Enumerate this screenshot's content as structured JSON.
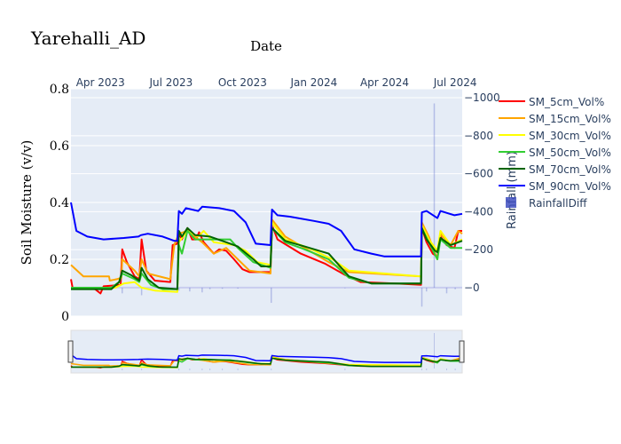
{
  "chart_data": {
    "type": "line",
    "title": "Yarehalli_AD",
    "xlabel": "Date",
    "ylabel": "Soil Moisture (v/v)",
    "y2label": "Rainfall (mm)",
    "xrange": [
      "2023-02-22",
      "2024-07-10"
    ],
    "ylim": [
      0,
      0.8
    ],
    "y2lim": [
      -150,
      1047
    ],
    "x_ticks": [
      {
        "date": "2023-04-01",
        "label": "Apr 2023"
      },
      {
        "date": "2023-07-01",
        "label": "Jul 2023"
      },
      {
        "date": "2023-10-01",
        "label": "Oct 2023"
      },
      {
        "date": "2024-01-01",
        "label": "Jan 2024"
      },
      {
        "date": "2024-04-01",
        "label": "Apr 2024"
      },
      {
        "date": "2024-07-01",
        "label": "Jul 2024"
      }
    ],
    "y_ticks": [
      {
        "v": 0,
        "label": "0"
      },
      {
        "v": 0.2,
        "label": "0.2"
      },
      {
        "v": 0.4,
        "label": "0.4"
      },
      {
        "v": 0.6,
        "label": "0.6"
      },
      {
        "v": 0.8,
        "label": "0.8"
      }
    ],
    "y2_ticks": [
      {
        "v": 0,
        "label": "0"
      },
      {
        "v": 200,
        "label": "200"
      },
      {
        "v": 400,
        "label": "400"
      },
      {
        "v": 600,
        "label": "600"
      },
      {
        "v": 800,
        "label": "800"
      },
      {
        "v": 1000,
        "label": "1000"
      }
    ],
    "grid": true,
    "legend_position": "right",
    "range_slider": true,
    "series": [
      {
        "name": "SM_5cm_Vol%",
        "color": "#ff0000",
        "points": [
          [
            "2023-02-22",
            0.13
          ],
          [
            "2023-02-24",
            0.1
          ],
          [
            "2023-03-25",
            0.095
          ],
          [
            "2023-04-01",
            0.08
          ],
          [
            "2023-04-05",
            0.105
          ],
          [
            "2023-04-27",
            0.11
          ],
          [
            "2023-04-29",
            0.235
          ],
          [
            "2023-05-05",
            0.19
          ],
          [
            "2023-05-15",
            0.14
          ],
          [
            "2023-05-21",
            0.13
          ],
          [
            "2023-05-24",
            0.27
          ],
          [
            "2023-05-30",
            0.16
          ],
          [
            "2023-06-10",
            0.125
          ],
          [
            "2023-06-30",
            0.12
          ],
          [
            "2023-07-03",
            0.25
          ],
          [
            "2023-07-09",
            0.255
          ],
          [
            "2023-07-11",
            0.29
          ],
          [
            "2023-07-15",
            0.27
          ],
          [
            "2023-07-22",
            0.31
          ],
          [
            "2023-07-28",
            0.27
          ],
          [
            "2023-08-02",
            0.27
          ],
          [
            "2023-08-06",
            0.295
          ],
          [
            "2023-08-12",
            0.26
          ],
          [
            "2023-08-25",
            0.22
          ],
          [
            "2023-09-01",
            0.235
          ],
          [
            "2023-09-10",
            0.23
          ],
          [
            "2023-09-20",
            0.2
          ],
          [
            "2023-10-01",
            0.165
          ],
          [
            "2023-10-10",
            0.155
          ],
          [
            "2023-11-06",
            0.155
          ],
          [
            "2023-11-08",
            0.32
          ],
          [
            "2023-11-15",
            0.27
          ],
          [
            "2023-12-15",
            0.22
          ],
          [
            "2024-01-15",
            0.185
          ],
          [
            "2024-02-10",
            0.145
          ],
          [
            "2024-03-01",
            0.12
          ],
          [
            "2024-04-15",
            0.115
          ],
          [
            "2024-05-18",
            0.11
          ],
          [
            "2024-05-19",
            0.31
          ],
          [
            "2024-05-25",
            0.26
          ],
          [
            "2024-06-02",
            0.22
          ],
          [
            "2024-06-08",
            0.21
          ],
          [
            "2024-06-12",
            0.28
          ],
          [
            "2024-06-20",
            0.25
          ],
          [
            "2024-06-30",
            0.24
          ],
          [
            "2024-07-05",
            0.3
          ],
          [
            "2024-07-10",
            0.3
          ]
        ]
      },
      {
        "name": "SM_15cm_Vol%",
        "color": "#ffa500",
        "points": [
          [
            "2023-02-22",
            0.18
          ],
          [
            "2023-03-10",
            0.14
          ],
          [
            "2023-04-12",
            0.14
          ],
          [
            "2023-04-13",
            0.125
          ],
          [
            "2023-04-22",
            0.13
          ],
          [
            "2023-04-28",
            0.135
          ],
          [
            "2023-04-29",
            0.2
          ],
          [
            "2023-05-15",
            0.16
          ],
          [
            "2023-05-21",
            0.14
          ],
          [
            "2023-05-24",
            0.2
          ],
          [
            "2023-06-01",
            0.15
          ],
          [
            "2023-06-30",
            0.13
          ],
          [
            "2023-07-05",
            0.25
          ],
          [
            "2023-07-11",
            0.29
          ],
          [
            "2023-07-22",
            0.3
          ],
          [
            "2023-08-10",
            0.26
          ],
          [
            "2023-08-25",
            0.22
          ],
          [
            "2023-09-10",
            0.24
          ],
          [
            "2023-09-25",
            0.2
          ],
          [
            "2023-10-10",
            0.16
          ],
          [
            "2023-11-06",
            0.15
          ],
          [
            "2023-11-08",
            0.34
          ],
          [
            "2023-11-25",
            0.28
          ],
          [
            "2023-12-20",
            0.24
          ],
          [
            "2024-01-20",
            0.19
          ],
          [
            "2024-02-15",
            0.155
          ],
          [
            "2024-05-18",
            0.14
          ],
          [
            "2024-05-19",
            0.33
          ],
          [
            "2024-05-28",
            0.28
          ],
          [
            "2024-06-05",
            0.22
          ],
          [
            "2024-06-08",
            0.2
          ],
          [
            "2024-06-12",
            0.29
          ],
          [
            "2024-06-25",
            0.25
          ],
          [
            "2024-07-05",
            0.3
          ],
          [
            "2024-07-10",
            0.29
          ]
        ]
      },
      {
        "name": "SM_30cm_Vol%",
        "color": "#ffff00",
        "points": [
          [
            "2023-02-22",
            0.1
          ],
          [
            "2023-03-20",
            0.095
          ],
          [
            "2023-04-20",
            0.1
          ],
          [
            "2023-05-01",
            0.115
          ],
          [
            "2023-05-15",
            0.12
          ],
          [
            "2023-05-24",
            0.1
          ],
          [
            "2023-06-10",
            0.09
          ],
          [
            "2023-07-09",
            0.085
          ],
          [
            "2023-07-11",
            0.26
          ],
          [
            "2023-07-22",
            0.3
          ],
          [
            "2023-08-05",
            0.28
          ],
          [
            "2023-08-12",
            0.3
          ],
          [
            "2023-08-25",
            0.26
          ],
          [
            "2023-09-20",
            0.25
          ],
          [
            "2023-10-05",
            0.23
          ],
          [
            "2023-10-20",
            0.19
          ],
          [
            "2023-11-06",
            0.18
          ],
          [
            "2023-11-08",
            0.33
          ],
          [
            "2023-11-25",
            0.27
          ],
          [
            "2023-12-25",
            0.24
          ],
          [
            "2024-01-25",
            0.2
          ],
          [
            "2024-02-15",
            0.16
          ],
          [
            "2024-05-18",
            0.14
          ],
          [
            "2024-05-19",
            0.32
          ],
          [
            "2024-05-28",
            0.27
          ],
          [
            "2024-06-08",
            0.23
          ],
          [
            "2024-06-12",
            0.3
          ],
          [
            "2024-06-25",
            0.25
          ],
          [
            "2024-07-10",
            0.27
          ]
        ]
      },
      {
        "name": "SM_50cm_Vol%",
        "color": "#32cd32",
        "points": [
          [
            "2023-02-22",
            0.1
          ],
          [
            "2023-04-15",
            0.1
          ],
          [
            "2023-04-25",
            0.12
          ],
          [
            "2023-04-29",
            0.15
          ],
          [
            "2023-05-15",
            0.13
          ],
          [
            "2023-05-21",
            0.12
          ],
          [
            "2023-05-24",
            0.15
          ],
          [
            "2023-06-05",
            0.11
          ],
          [
            "2023-06-20",
            0.095
          ],
          [
            "2023-07-09",
            0.095
          ],
          [
            "2023-07-11",
            0.25
          ],
          [
            "2023-07-15",
            0.22
          ],
          [
            "2023-07-22",
            0.3
          ],
          [
            "2023-08-01",
            0.27
          ],
          [
            "2023-09-15",
            0.27
          ],
          [
            "2023-09-25",
            0.24
          ],
          [
            "2023-10-15",
            0.19
          ],
          [
            "2023-11-06",
            0.17
          ],
          [
            "2023-11-08",
            0.31
          ],
          [
            "2023-11-25",
            0.26
          ],
          [
            "2023-12-20",
            0.235
          ],
          [
            "2024-01-20",
            0.2
          ],
          [
            "2024-02-15",
            0.135
          ],
          [
            "2024-03-15",
            0.115
          ],
          [
            "2024-05-18",
            0.115
          ],
          [
            "2024-05-19",
            0.31
          ],
          [
            "2024-05-28",
            0.26
          ],
          [
            "2024-06-08",
            0.2
          ],
          [
            "2024-06-12",
            0.27
          ],
          [
            "2024-06-25",
            0.24
          ],
          [
            "2024-07-10",
            0.24
          ]
        ]
      },
      {
        "name": "SM_70cm_Vol%",
        "color": "#006400",
        "points": [
          [
            "2023-02-22",
            0.095
          ],
          [
            "2023-04-15",
            0.095
          ],
          [
            "2023-04-25",
            0.12
          ],
          [
            "2023-04-29",
            0.16
          ],
          [
            "2023-05-10",
            0.145
          ],
          [
            "2023-05-21",
            0.125
          ],
          [
            "2023-05-24",
            0.17
          ],
          [
            "2023-06-01",
            0.13
          ],
          [
            "2023-06-15",
            0.1
          ],
          [
            "2023-07-09",
            0.095
          ],
          [
            "2023-07-11",
            0.3
          ],
          [
            "2023-07-15",
            0.28
          ],
          [
            "2023-07-22",
            0.31
          ],
          [
            "2023-08-01",
            0.285
          ],
          [
            "2023-08-20",
            0.28
          ],
          [
            "2023-09-10",
            0.26
          ],
          [
            "2023-09-25",
            0.245
          ],
          [
            "2023-10-15",
            0.2
          ],
          [
            "2023-10-25",
            0.175
          ],
          [
            "2023-11-06",
            0.175
          ],
          [
            "2023-11-08",
            0.31
          ],
          [
            "2023-11-25",
            0.265
          ],
          [
            "2023-12-20",
            0.245
          ],
          [
            "2024-01-20",
            0.22
          ],
          [
            "2024-02-15",
            0.14
          ],
          [
            "2024-03-15",
            0.115
          ],
          [
            "2024-05-18",
            0.115
          ],
          [
            "2024-05-19",
            0.31
          ],
          [
            "2024-05-25",
            0.27
          ],
          [
            "2024-06-05",
            0.23
          ],
          [
            "2024-06-08",
            0.225
          ],
          [
            "2024-06-12",
            0.275
          ],
          [
            "2024-06-25",
            0.25
          ],
          [
            "2024-07-10",
            0.265
          ]
        ]
      },
      {
        "name": "SM_90cm_Vol%",
        "color": "#0000ff",
        "points": [
          [
            "2023-02-22",
            0.4
          ],
          [
            "2023-03-01",
            0.3
          ],
          [
            "2023-03-15",
            0.28
          ],
          [
            "2023-04-05",
            0.27
          ],
          [
            "2023-05-01",
            0.275
          ],
          [
            "2023-05-20",
            0.28
          ],
          [
            "2023-05-23",
            0.285
          ],
          [
            "2023-06-01",
            0.29
          ],
          [
            "2023-06-20",
            0.28
          ],
          [
            "2023-07-05",
            0.265
          ],
          [
            "2023-07-09",
            0.265
          ],
          [
            "2023-07-11",
            0.37
          ],
          [
            "2023-07-15",
            0.36
          ],
          [
            "2023-07-20",
            0.38
          ],
          [
            "2023-08-05",
            0.37
          ],
          [
            "2023-08-10",
            0.385
          ],
          [
            "2023-09-01",
            0.38
          ],
          [
            "2023-09-20",
            0.37
          ],
          [
            "2023-10-05",
            0.33
          ],
          [
            "2023-10-18",
            0.255
          ],
          [
            "2023-11-06",
            0.25
          ],
          [
            "2023-11-08",
            0.375
          ],
          [
            "2023-11-15",
            0.355
          ],
          [
            "2023-12-01",
            0.35
          ],
          [
            "2024-01-01",
            0.335
          ],
          [
            "2024-01-20",
            0.325
          ],
          [
            "2024-02-05",
            0.3
          ],
          [
            "2024-02-22",
            0.235
          ],
          [
            "2024-03-15",
            0.22
          ],
          [
            "2024-04-01",
            0.21
          ],
          [
            "2024-05-18",
            0.21
          ],
          [
            "2024-05-19",
            0.365
          ],
          [
            "2024-05-25",
            0.37
          ],
          [
            "2024-06-08",
            0.345
          ],
          [
            "2024-06-12",
            0.37
          ],
          [
            "2024-06-30",
            0.355
          ],
          [
            "2024-07-10",
            0.36
          ]
        ]
      }
    ],
    "bars": {
      "name": "RainfallDiff",
      "color": "#3f4fbf",
      "axis": "y2",
      "points": [
        [
          "2023-04-29",
          -30
        ],
        [
          "2023-05-24",
          -40
        ],
        [
          "2023-07-11",
          -15
        ],
        [
          "2023-07-25",
          -20
        ],
        [
          "2023-08-10",
          -25
        ],
        [
          "2023-08-20",
          -8
        ],
        [
          "2023-09-05",
          -6
        ],
        [
          "2023-09-25",
          -5
        ],
        [
          "2023-11-07",
          -80
        ],
        [
          "2024-02-10",
          -3
        ],
        [
          "2024-05-19",
          -100
        ],
        [
          "2024-05-25",
          -20
        ],
        [
          "2024-06-04",
          970
        ],
        [
          "2024-06-20",
          -30
        ],
        [
          "2024-07-01",
          -8
        ]
      ]
    }
  }
}
